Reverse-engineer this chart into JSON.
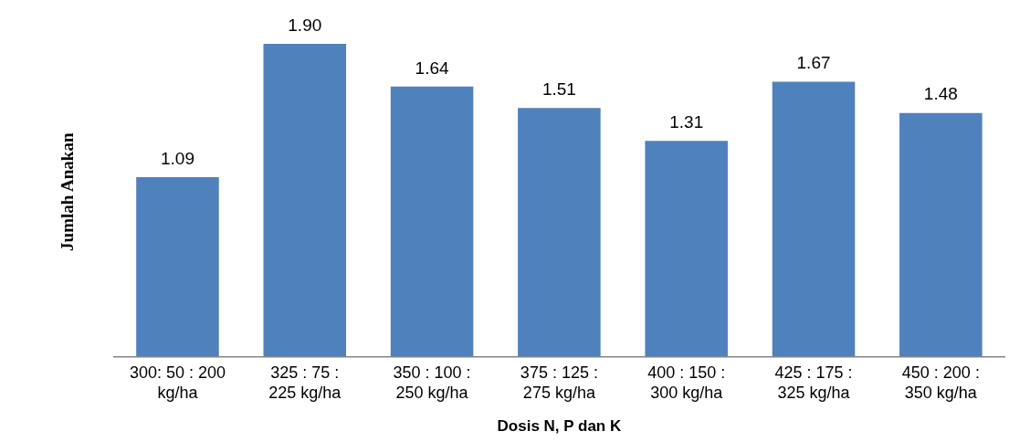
{
  "chart_data": {
    "type": "bar",
    "xlabel": "Dosis N, P dan K",
    "ylabel": "Jumlah Anakan",
    "categories": [
      "300: 50 : 200\nkg/ha",
      "325 : 75 :\n225 kg/ha",
      "350 : 100 :\n250 kg/ha",
      "375 : 125 :\n275 kg/ha",
      "400 : 150 :\n300 kg/ha",
      "425 : 175 :\n325 kg/ha",
      "450 : 200 :\n350 kg/ha"
    ],
    "values": [
      1.09,
      1.9,
      1.64,
      1.51,
      1.31,
      1.67,
      1.48
    ],
    "value_labels": [
      "1.09",
      "1.90",
      "1.64",
      "1.51",
      "1.31",
      "1.67",
      "1.48"
    ],
    "color": "#4f81bd",
    "grid": false,
    "legend": false
  }
}
